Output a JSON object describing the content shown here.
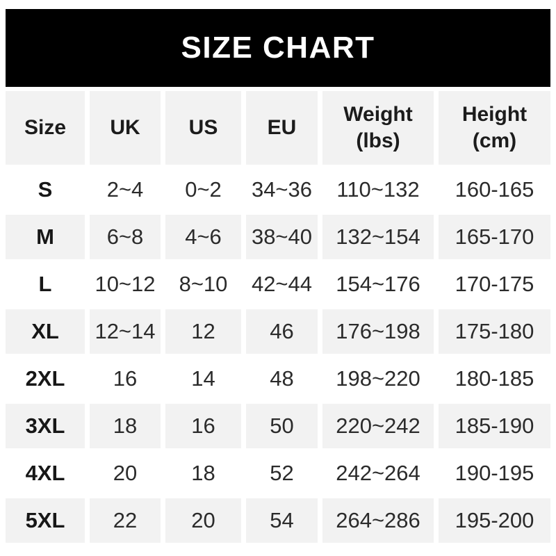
{
  "banner": {
    "title": "SIZE CHART"
  },
  "colors": {
    "banner_bg": "#000000",
    "banner_text": "#ffffff",
    "row_alt_bg": "#f2f2f2",
    "row_bg": "#ffffff",
    "text": "#2b2b2b"
  },
  "table": {
    "columns": [
      "Size",
      "UK",
      "US",
      "EU",
      "Weight\n(lbs)",
      "Height\n(cm)"
    ],
    "rows": [
      {
        "size": "S",
        "uk": "2~4",
        "us": "0~2",
        "eu": "34~36",
        "weight": "110~132",
        "height": "160-165"
      },
      {
        "size": "M",
        "uk": "6~8",
        "us": "4~6",
        "eu": "38~40",
        "weight": "132~154",
        "height": "165-170"
      },
      {
        "size": "L",
        "uk": "10~12",
        "us": "8~10",
        "eu": "42~44",
        "weight": "154~176",
        "height": "170-175"
      },
      {
        "size": "XL",
        "uk": "12~14",
        "us": "12",
        "eu": "46",
        "weight": "176~198",
        "height": "175-180"
      },
      {
        "size": "2XL",
        "uk": "16",
        "us": "14",
        "eu": "48",
        "weight": "198~220",
        "height": "180-185"
      },
      {
        "size": "3XL",
        "uk": "18",
        "us": "16",
        "eu": "50",
        "weight": "220~242",
        "height": "185-190"
      },
      {
        "size": "4XL",
        "uk": "20",
        "us": "18",
        "eu": "52",
        "weight": "242~264",
        "height": "190-195"
      },
      {
        "size": "5XL",
        "uk": "22",
        "us": "20",
        "eu": "54",
        "weight": "264~286",
        "height": "195-200"
      }
    ]
  }
}
